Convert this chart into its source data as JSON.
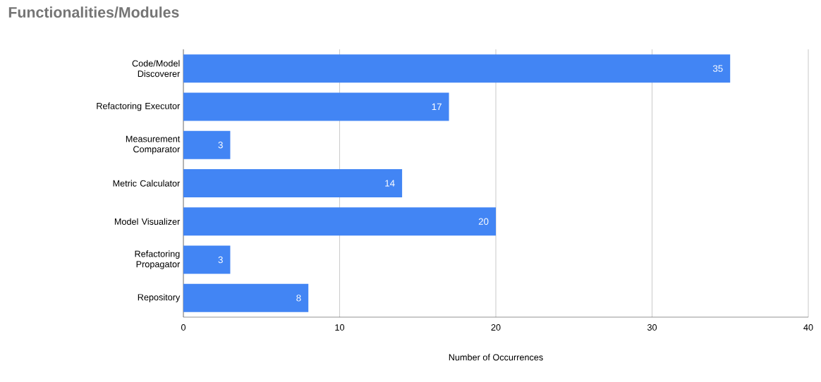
{
  "chart_data": {
    "type": "bar",
    "orientation": "horizontal",
    "title": "Functionalities/Modules",
    "xlabel": "Number of Occurrences",
    "categories": [
      "Code/Model Discoverer",
      "Refactoring Executor",
      "Measurement Comparator",
      "Metric Calculator",
      "Model Visualizer",
      "Refactoring Propagator",
      "Repository"
    ],
    "values": [
      35,
      17,
      3,
      14,
      20,
      3,
      8
    ],
    "color": "#4285f4",
    "xlim": [
      0,
      40
    ],
    "xticks": [
      0,
      10,
      20,
      30,
      40
    ],
    "grid": "x",
    "data_labels": true
  }
}
